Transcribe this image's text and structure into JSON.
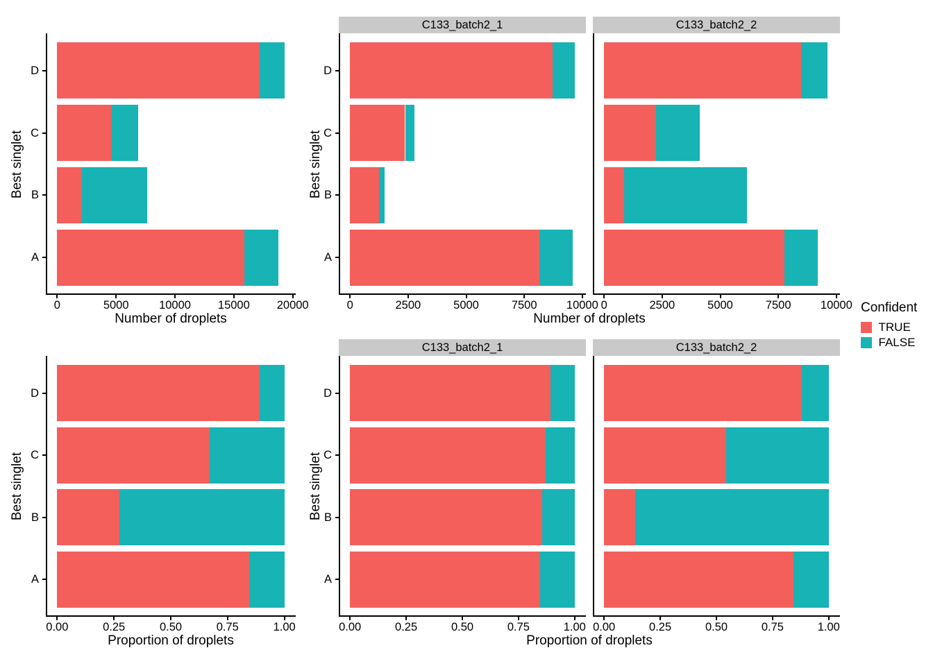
{
  "legend": {
    "title": "Confident",
    "items": [
      {
        "label": "TRUE",
        "color": "#F45F5C"
      },
      {
        "label": "FALSE",
        "color": "#17B3B5"
      }
    ]
  },
  "colors": {
    "strip_background": "#C9C9C9",
    "axis": "#000000"
  },
  "chart_data": [
    {
      "type": "bar",
      "orientation": "horizontal",
      "stacked": true,
      "position": "top-left",
      "xlabel": "Number of droplets",
      "ylabel": "Best singlet",
      "categories": [
        "A",
        "B",
        "C",
        "D"
      ],
      "x_ticks": [
        0,
        5000,
        10000,
        15000,
        20000
      ],
      "x_tick_labels": [
        "0",
        "5000",
        "10000",
        "15000",
        "20000"
      ],
      "x_axis_max": 19290,
      "facets": [
        {
          "strip": null,
          "series": [
            {
              "name": "TRUE",
              "values": [
                15890,
                2110,
                4610,
                17190
              ]
            },
            {
              "name": "FALSE",
              "values": [
                2900,
                5520,
                2280,
                2100
              ]
            }
          ]
        }
      ]
    },
    {
      "type": "bar",
      "orientation": "horizontal",
      "stacked": true,
      "position": "top-right",
      "xlabel": "Number of droplets",
      "ylabel": "Best singlet",
      "categories": [
        "A",
        "B",
        "C",
        "D"
      ],
      "x_ticks": [
        0,
        2500,
        5000,
        7500,
        10000
      ],
      "x_tick_labels": [
        "0",
        "2500",
        "5000",
        "7500",
        "10000"
      ],
      "x_axis_max": 9670,
      "facets": [
        {
          "strip": "C133_batch2_1",
          "series": [
            {
              "name": "TRUE",
              "values": [
                8140,
                1250,
                2370,
                8720
              ]
            },
            {
              "name": "FALSE",
              "values": [
                1460,
                240,
                400,
                950
              ]
            }
          ]
        },
        {
          "strip": "C133_batch2_2",
          "series": [
            {
              "name": "TRUE",
              "values": [
                7750,
                860,
                2240,
                8470
              ]
            },
            {
              "name": "FALSE",
              "values": [
                1440,
                5280,
                1880,
                1150
              ]
            }
          ]
        }
      ]
    },
    {
      "type": "bar",
      "orientation": "horizontal",
      "stacked": true,
      "position": "bottom-left",
      "xlabel": "Proportion of droplets",
      "ylabel": "Best singlet",
      "categories": [
        "A",
        "B",
        "C",
        "D"
      ],
      "x_ticks": [
        0,
        0.25,
        0.5,
        0.75,
        1
      ],
      "x_tick_labels": [
        "0.00",
        "0.25",
        "0.50",
        "0.75",
        "1.00"
      ],
      "x_axis_max": 1,
      "facets": [
        {
          "strip": null,
          "series": [
            {
              "name": "TRUE",
              "values": [
                0.845,
                0.275,
                0.67,
                0.89
              ]
            },
            {
              "name": "FALSE",
              "values": [
                0.155,
                0.725,
                0.33,
                0.11
              ]
            }
          ]
        }
      ]
    },
    {
      "type": "bar",
      "orientation": "horizontal",
      "stacked": true,
      "position": "bottom-right",
      "xlabel": "Proportion of droplets",
      "ylabel": "Best singlet",
      "categories": [
        "A",
        "B",
        "C",
        "D"
      ],
      "x_ticks": [
        0,
        0.25,
        0.5,
        0.75,
        1
      ],
      "x_tick_labels": [
        "0.00",
        "0.25",
        "0.50",
        "0.75",
        "1.00"
      ],
      "x_axis_max": 1,
      "facets": [
        {
          "strip": "C133_batch2_1",
          "series": [
            {
              "name": "TRUE",
              "values": [
                0.845,
                0.855,
                0.87,
                0.893
              ]
            },
            {
              "name": "FALSE",
              "values": [
                0.155,
                0.145,
                0.13,
                0.107
              ]
            }
          ]
        },
        {
          "strip": "C133_batch2_2",
          "series": [
            {
              "name": "TRUE",
              "values": [
                0.843,
                0.139,
                0.544,
                0.881
              ]
            },
            {
              "name": "FALSE",
              "values": [
                0.157,
                0.861,
                0.456,
                0.119
              ]
            }
          ]
        }
      ]
    }
  ]
}
